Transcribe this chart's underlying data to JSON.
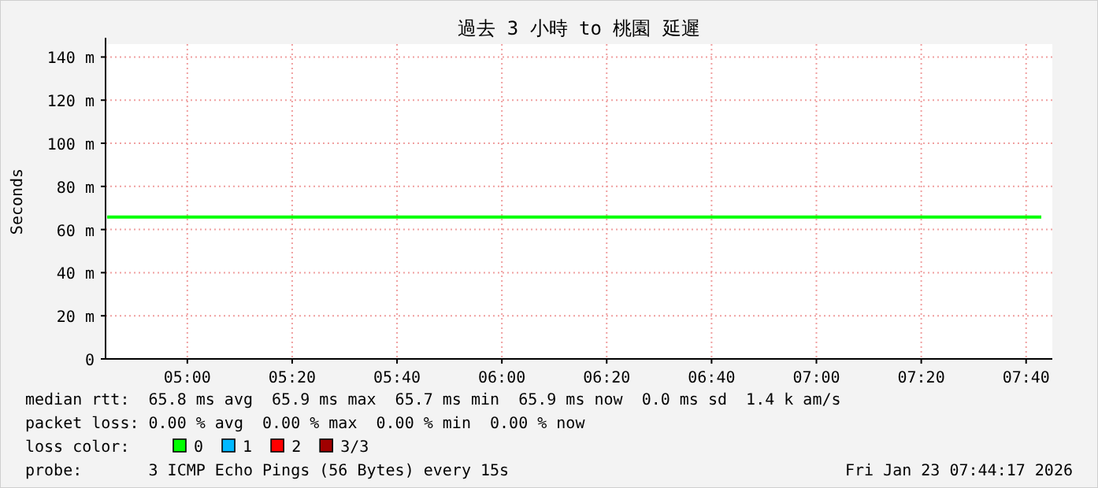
{
  "chart_data": {
    "type": "line",
    "title": "過去 3 小時 to 桃園 延遲",
    "ylabel": "Seconds",
    "x": [
      4.745,
      7.715
    ],
    "series": [
      {
        "name": "0",
        "color": "#00ff00",
        "values": [
          65.8,
          65.8
        ]
      },
      {
        "name": "1",
        "color": "#00b8ff",
        "values": [
          null,
          null
        ]
      },
      {
        "name": "2",
        "color": "#ff0000",
        "values": [
          null,
          null
        ]
      },
      {
        "name": "3/3",
        "color": "#a00000",
        "values": [
          null,
          null
        ]
      }
    ],
    "legend_title": "loss color:",
    "legend": "bottom",
    "xlim": [
      4.74,
      7.75
    ],
    "xticks": [
      {
        "value": 5,
        "label": "05:00"
      },
      {
        "value": 5.3333,
        "label": "05:20"
      },
      {
        "value": 5.6667,
        "label": "05:40"
      },
      {
        "value": 6,
        "label": "06:00"
      },
      {
        "value": 6.3333,
        "label": "06:20"
      },
      {
        "value": 6.6667,
        "label": "06:40"
      },
      {
        "value": 7,
        "label": "07:00"
      },
      {
        "value": 7.3333,
        "label": "07:20"
      },
      {
        "value": 7.6667,
        "label": "07:40"
      }
    ],
    "ylim": [
      0,
      146
    ],
    "yticks": [
      0,
      {
        "value": 20,
        "label": "20 m"
      },
      {
        "value": 40,
        "label": "40 m"
      },
      {
        "value": 60,
        "label": "60 m"
      },
      {
        "value": 80,
        "label": "80 m"
      },
      {
        "value": 100,
        "label": "100 m"
      },
      {
        "value": 120,
        "label": "120 m"
      },
      {
        "value": 140,
        "label": "140 m"
      }
    ],
    "grid": true,
    "annotations": [
      "median rtt:  65.8 ms avg  65.9 ms max  65.7 ms min  65.9 ms now  0.0 ms sd  1.4 k am/s",
      "packet loss: 0.00 % avg  0.00 % max  0.00 % min  0.00 % now",
      "probe:       3 ICMP Echo Pings (56 Bytes) every 15s",
      "Fri Jan 23 07:44:17 2026"
    ]
  }
}
